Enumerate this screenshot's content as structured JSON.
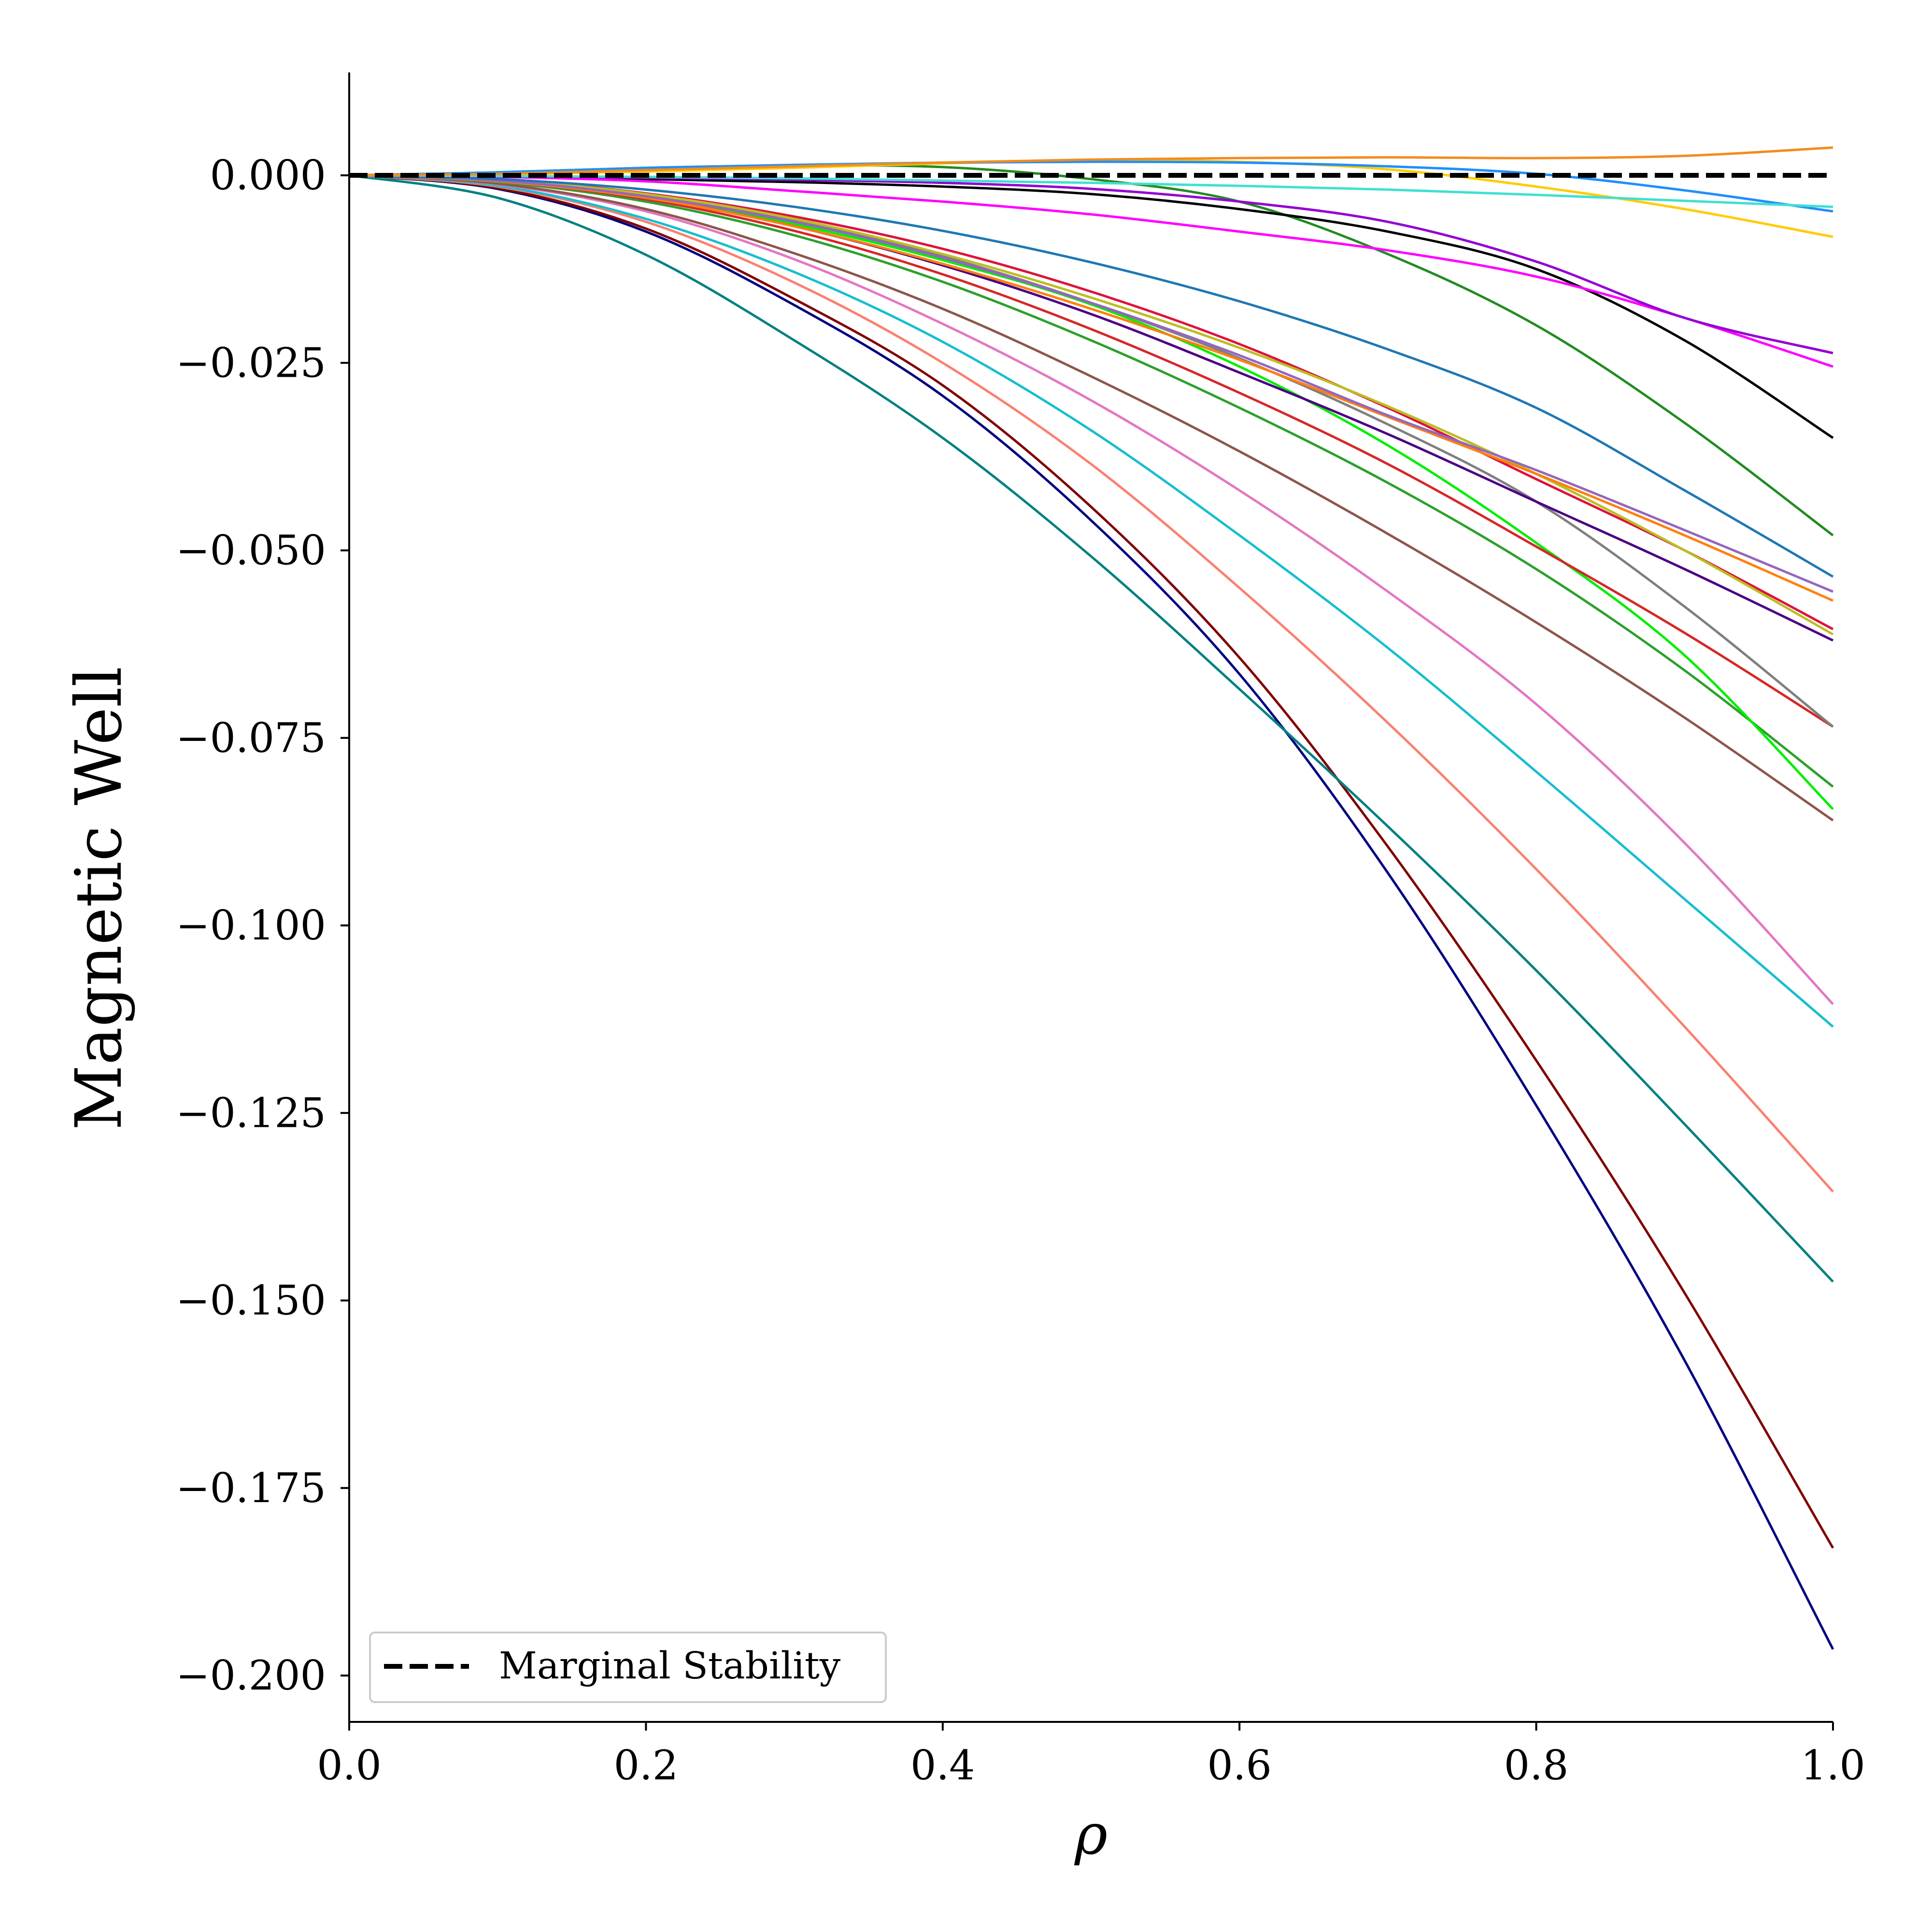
{
  "chart_data": {
    "type": "line",
    "title": "",
    "xlabel": "ρ",
    "ylabel": "Magnetic Well",
    "xlim": [
      0.0,
      1.0
    ],
    "ylim": [
      -0.2065,
      0.0135
    ],
    "grid": false,
    "legend_position": "lower-left",
    "legend_entries": [
      "Marginal Stability"
    ],
    "x_ticks": [
      0.0,
      0.2,
      0.4,
      0.6,
      0.8,
      1.0
    ],
    "x_tick_labels": [
      "0.0",
      "0.2",
      "0.4",
      "0.6",
      "0.8",
      "1.0"
    ],
    "y_ticks": [
      0.0,
      -0.025,
      -0.05,
      -0.075,
      -0.1,
      -0.125,
      -0.15,
      -0.175,
      -0.2
    ],
    "y_tick_labels": [
      "0.000",
      "−0.025",
      "−0.050",
      "−0.075",
      "−0.100",
      "−0.125",
      "−0.150",
      "−0.175",
      "−0.200"
    ],
    "x": [
      0.0,
      0.1,
      0.2,
      0.3,
      0.4,
      0.5,
      0.6,
      0.7,
      0.8,
      0.9,
      1.0
    ],
    "reference_line": {
      "name": "Marginal Stability",
      "y": 0.0,
      "color": "#000000",
      "style": "dashed"
    },
    "series": [
      {
        "name": "navy",
        "color": "#000080",
        "values": [
          0,
          -0.0018,
          -0.0075,
          -0.0173,
          -0.0294,
          -0.046,
          -0.0665,
          -0.093,
          -0.124,
          -0.158,
          -0.1965
        ]
      },
      {
        "name": "maroon",
        "color": "#800000",
        "values": [
          0,
          -0.0017,
          -0.0071,
          -0.0165,
          -0.028,
          -0.0442,
          -0.0643,
          -0.0895,
          -0.118,
          -0.149,
          -0.183
        ]
      },
      {
        "name": "teal",
        "color": "#008080",
        "values": [
          0,
          -0.003,
          -0.0106,
          -0.022,
          -0.035,
          -0.0508,
          -0.0685,
          -0.0868,
          -0.106,
          -0.1265,
          -0.1475
        ]
      },
      {
        "name": "salmon",
        "color": "#fa8072",
        "values": [
          0,
          -0.0015,
          -0.0062,
          -0.0143,
          -0.025,
          -0.0385,
          -0.055,
          -0.073,
          -0.0925,
          -0.1135,
          -0.1355
        ]
      },
      {
        "name": "cyan",
        "color": "#17becf",
        "values": [
          0,
          -0.0014,
          -0.0058,
          -0.0129,
          -0.0222,
          -0.034,
          -0.048,
          -0.063,
          -0.0795,
          -0.0965,
          -0.1135
        ]
      },
      {
        "name": "orchid",
        "color": "#e377c2",
        "values": [
          0,
          -0.0012,
          -0.0048,
          -0.0112,
          -0.0198,
          -0.03,
          -0.042,
          -0.0555,
          -0.0705,
          -0.089,
          -0.1105
        ]
      },
      {
        "name": "brown",
        "color": "#8c564b",
        "values": [
          0,
          -0.0011,
          -0.0045,
          -0.0104,
          -0.0178,
          -0.0268,
          -0.0368,
          -0.0478,
          -0.0596,
          -0.0723,
          -0.086
        ]
      },
      {
        "name": "green",
        "color": "#2ca02c",
        "values": [
          0,
          -0.0009,
          -0.0035,
          -0.008,
          -0.0142,
          -0.022,
          -0.031,
          -0.041,
          -0.0525,
          -0.066,
          -0.0815
        ]
      },
      {
        "name": "lime",
        "color": "#00ee00",
        "values": [
          0,
          -0.0007,
          -0.0028,
          -0.0065,
          -0.0113,
          -0.0172,
          -0.0255,
          -0.036,
          -0.049,
          -0.064,
          -0.0845
        ]
      },
      {
        "name": "red",
        "color": "#d62728",
        "values": [
          0,
          -0.0008,
          -0.0032,
          -0.0074,
          -0.0132,
          -0.0205,
          -0.029,
          -0.0385,
          -0.0495,
          -0.061,
          -0.0735
        ]
      },
      {
        "name": "gray",
        "color": "#7f7f7f",
        "values": [
          0,
          -0.0006,
          -0.0026,
          -0.006,
          -0.0108,
          -0.017,
          -0.0244,
          -0.0332,
          -0.0435,
          -0.0575,
          -0.0735
        ]
      },
      {
        "name": "indigo",
        "color": "#4b0082",
        "values": [
          0,
          -0.0008,
          -0.003,
          -0.0068,
          -0.012,
          -0.0185,
          -0.0263,
          -0.0345,
          -0.0435,
          -0.0525,
          -0.062
        ]
      },
      {
        "name": "crimson",
        "color": "#dc143c",
        "values": [
          0,
          -0.0006,
          -0.0024,
          -0.0055,
          -0.0098,
          -0.0155,
          -0.0225,
          -0.031,
          -0.0405,
          -0.05,
          -0.0605
        ]
      },
      {
        "name": "olive",
        "color": "#bcbd22",
        "values": [
          0,
          -0.0006,
          -0.0025,
          -0.0058,
          -0.0105,
          -0.0163,
          -0.023,
          -0.0308,
          -0.0398,
          -0.05,
          -0.0612
        ]
      },
      {
        "name": "orange",
        "color": "#ff7f0e",
        "values": [
          0,
          -0.0008,
          -0.003,
          -0.0068,
          -0.0118,
          -0.0178,
          -0.0246,
          -0.0322,
          -0.0398,
          -0.048,
          -0.0567
        ]
      },
      {
        "name": "purple",
        "color": "#9467bd",
        "values": [
          0,
          -0.0007,
          -0.0028,
          -0.0062,
          -0.011,
          -0.017,
          -0.024,
          -0.032,
          -0.0393,
          -0.0473,
          -0.0555
        ]
      },
      {
        "name": "blue",
        "color": "#1f77b4",
        "values": [
          0,
          -0.0005,
          -0.0019,
          -0.0042,
          -0.0074,
          -0.0116,
          -0.0168,
          -0.0232,
          -0.031,
          -0.042,
          -0.0535
        ]
      },
      {
        "name": "forest",
        "color": "#228b22",
        "values": [
          0,
          0.0004,
          0.001,
          0.0013,
          0.0011,
          -0.0005,
          -0.0035,
          -0.0105,
          -0.02,
          -0.033,
          -0.048
        ]
      },
      {
        "name": "black",
        "color": "#000000",
        "values": [
          0,
          -0.0002,
          -0.0005,
          -0.0009,
          -0.0015,
          -0.0025,
          -0.0045,
          -0.0075,
          -0.0125,
          -0.022,
          -0.035
        ]
      },
      {
        "name": "magenta",
        "color": "#ff00ff",
        "values": [
          0,
          -0.0002,
          -0.0008,
          -0.0021,
          -0.0035,
          -0.0052,
          -0.0075,
          -0.01,
          -0.0135,
          -0.019,
          -0.0255
        ]
      },
      {
        "name": "violet",
        "color": "#9400d3",
        "values": [
          0,
          -0.0001,
          -0.0003,
          -0.0006,
          -0.001,
          -0.0018,
          -0.0035,
          -0.0062,
          -0.0115,
          -0.019,
          -0.0237
        ]
      },
      {
        "name": "gold",
        "color": "#ffcc00",
        "values": [
          0,
          0.0001,
          0.0005,
          0.001,
          0.0016,
          0.002,
          0.0018,
          0.0008,
          -0.0015,
          -0.0045,
          -0.0082
        ]
      },
      {
        "name": "dodgerblue",
        "color": "#1e90ff",
        "values": [
          0,
          0.0004,
          0.001,
          0.0014,
          0.0017,
          0.0018,
          0.0017,
          0.0012,
          0.0002,
          -0.002,
          -0.0048
        ]
      },
      {
        "name": "turquoise",
        "color": "#40e0d0",
        "values": [
          0,
          -0.0001,
          -0.0002,
          -0.0004,
          -0.0007,
          -0.001,
          -0.0014,
          -0.0019,
          -0.0026,
          -0.0034,
          -0.0042
        ]
      },
      {
        "name": "darkorange",
        "color": "#f28c1e",
        "values": [
          0,
          0.0002,
          0.0007,
          0.0012,
          0.0017,
          0.0021,
          0.0023,
          0.0024,
          0.0023,
          0.0026,
          0.0037
        ]
      }
    ]
  }
}
